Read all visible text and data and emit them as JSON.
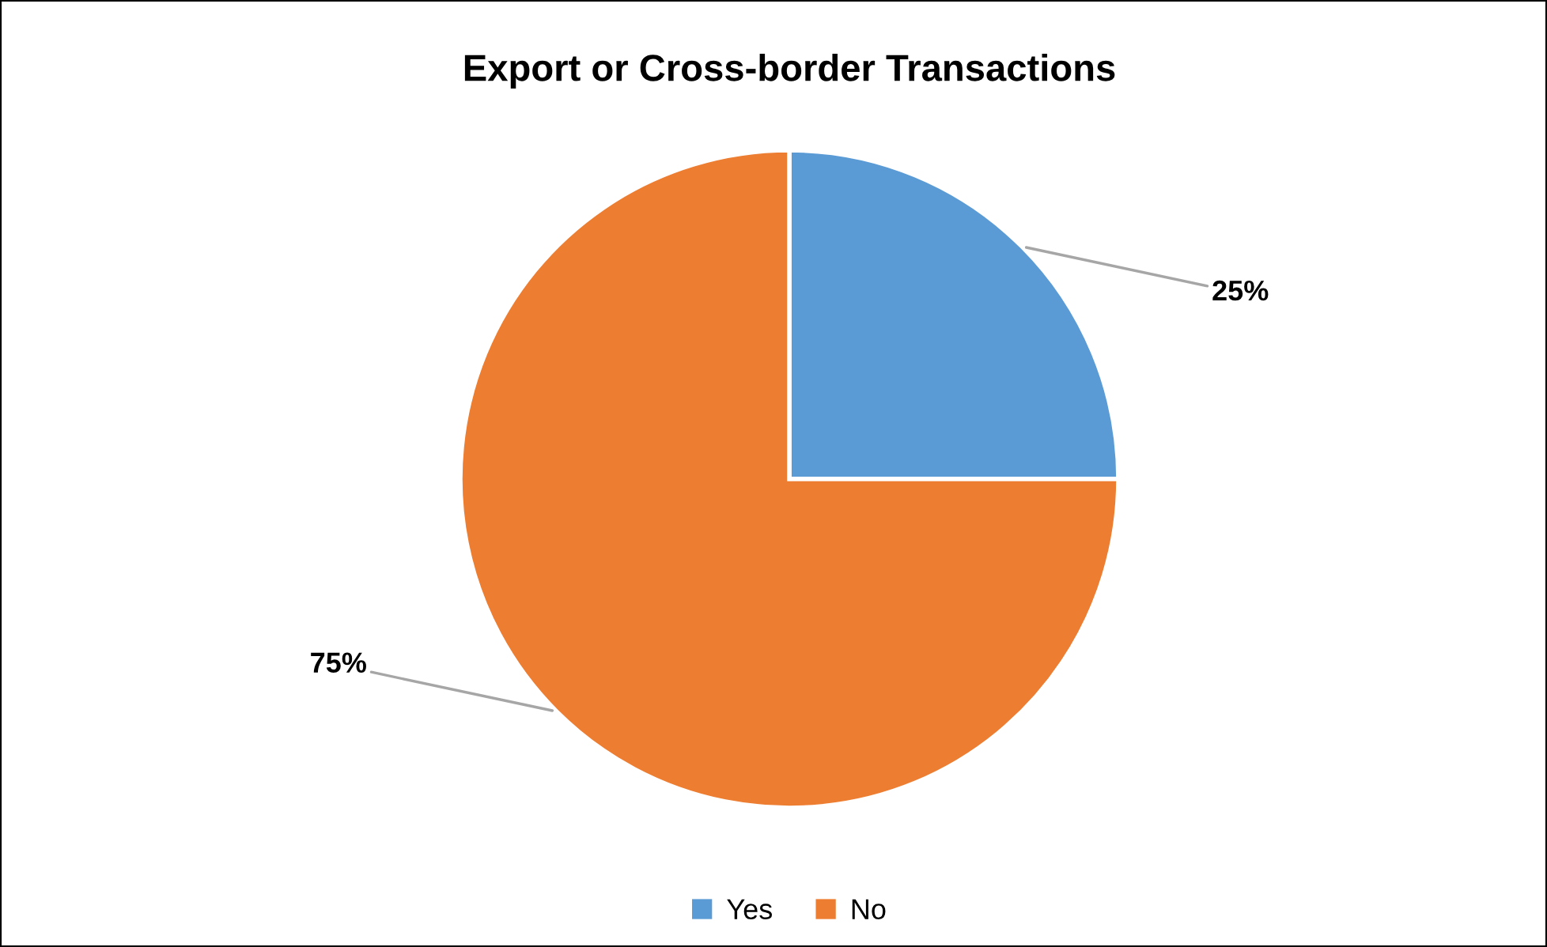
{
  "chart_data": {
    "type": "pie",
    "title": "Export or Cross-border Transactions",
    "categories": [
      "Yes",
      "No"
    ],
    "values": [
      25,
      75
    ],
    "colors": [
      "#5b9bd5",
      "#ed7d31"
    ],
    "value_labels": [
      "25%",
      "75%"
    ],
    "legend": "bottom"
  }
}
